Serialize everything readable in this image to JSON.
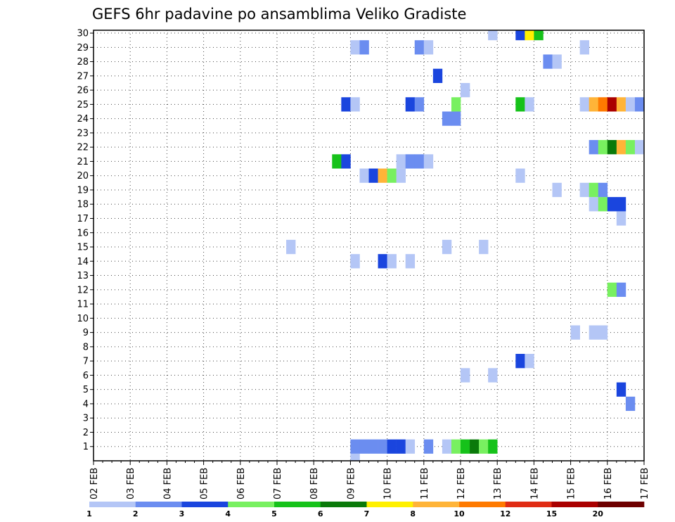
{
  "chart_data": {
    "type": "heatmap",
    "title": "GEFS 6hr padavine po ansamblima Veliko Gradiste",
    "xlabel": "",
    "ylabel": "",
    "x_ticks": [
      "02 FEB",
      "03 FEB",
      "04 FEB",
      "05 FEB",
      "06 FEB",
      "07 FEB",
      "08 FEB",
      "09 FEB",
      "10 FEB",
      "11 FEB",
      "12 FEB",
      "13 FEB",
      "14 FEB",
      "15 FEB",
      "16 FEB",
      "17 FEB"
    ],
    "y_ticks": [
      "1",
      "2",
      "3",
      "4",
      "5",
      "6",
      "7",
      "8",
      "9",
      "10",
      "11",
      "12",
      "13",
      "14",
      "15",
      "16",
      "17",
      "18",
      "19",
      "20",
      "21",
      "22",
      "23",
      "24",
      "25",
      "26",
      "27",
      "28",
      "29",
      "30"
    ],
    "xlim": [
      0,
      60
    ],
    "ylim": [
      0,
      30
    ],
    "grid": true,
    "color_scale": {
      "labels": [
        "1",
        "2",
        "3",
        "4",
        "5",
        "6",
        "7",
        "8",
        "10",
        "12",
        "15",
        "20"
      ],
      "colors": [
        "#b4c6f6",
        "#6b8df0",
        "#1a45de",
        "#78f060",
        "#16c21a",
        "#0a7a0a",
        "#fff000",
        "#ffb438",
        "#ff7a00",
        "#e02c14",
        "#aa0000",
        "#6e0000"
      ]
    },
    "cells": [
      [
        0,
        28,
        0
      ],
      [
        1,
        28,
        1
      ],
      [
        1,
        29,
        1
      ],
      [
        1,
        30,
        1
      ],
      [
        1,
        31,
        1
      ],
      [
        1,
        32,
        2
      ],
      [
        1,
        33,
        2
      ],
      [
        1,
        34,
        0
      ],
      [
        1,
        36,
        1
      ],
      [
        1,
        38,
        0
      ],
      [
        1,
        39,
        3
      ],
      [
        1,
        40,
        4
      ],
      [
        1,
        41,
        5
      ],
      [
        1,
        42,
        3
      ],
      [
        1,
        43,
        4
      ],
      [
        4,
        58,
        1
      ],
      [
        5,
        57,
        2
      ],
      [
        6,
        40,
        0
      ],
      [
        6,
        43,
        0
      ],
      [
        7,
        46,
        2
      ],
      [
        7,
        47,
        0
      ],
      [
        9,
        52,
        0
      ],
      [
        9,
        54,
        0
      ],
      [
        9,
        55,
        0
      ],
      [
        12,
        56,
        3
      ],
      [
        12,
        57,
        1
      ],
      [
        14,
        28,
        0
      ],
      [
        14,
        31,
        2
      ],
      [
        14,
        32,
        0
      ],
      [
        14,
        34,
        0
      ],
      [
        15,
        21,
        0
      ],
      [
        15,
        38,
        0
      ],
      [
        15,
        42,
        0
      ],
      [
        17,
        57,
        0
      ],
      [
        18,
        54,
        0
      ],
      [
        18,
        55,
        3
      ],
      [
        18,
        56,
        2
      ],
      [
        18,
        57,
        2
      ],
      [
        19,
        50,
        0
      ],
      [
        19,
        53,
        0
      ],
      [
        19,
        54,
        3
      ],
      [
        19,
        55,
        1
      ],
      [
        20,
        29,
        0
      ],
      [
        20,
        30,
        2
      ],
      [
        20,
        31,
        7
      ],
      [
        20,
        32,
        3
      ],
      [
        20,
        33,
        0
      ],
      [
        20,
        46,
        0
      ],
      [
        21,
        26,
        4
      ],
      [
        21,
        27,
        2
      ],
      [
        21,
        33,
        0
      ],
      [
        21,
        34,
        1
      ],
      [
        21,
        35,
        1
      ],
      [
        21,
        36,
        0
      ],
      [
        22,
        54,
        1
      ],
      [
        22,
        55,
        3
      ],
      [
        22,
        56,
        5
      ],
      [
        22,
        57,
        7
      ],
      [
        22,
        58,
        3
      ],
      [
        22,
        59,
        0
      ],
      [
        24,
        38,
        1
      ],
      [
        24,
        39,
        1
      ],
      [
        25,
        27,
        2
      ],
      [
        25,
        28,
        0
      ],
      [
        25,
        34,
        2
      ],
      [
        25,
        35,
        1
      ],
      [
        25,
        39,
        3
      ],
      [
        25,
        46,
        4
      ],
      [
        25,
        47,
        0
      ],
      [
        25,
        53,
        0
      ],
      [
        25,
        54,
        7
      ],
      [
        25,
        55,
        8
      ],
      [
        25,
        56,
        10
      ],
      [
        25,
        57,
        7
      ],
      [
        25,
        58,
        0
      ],
      [
        25,
        59,
        1
      ],
      [
        26,
        40,
        0
      ],
      [
        27,
        37,
        2
      ],
      [
        28,
        49,
        1
      ],
      [
        28,
        50,
        0
      ],
      [
        29,
        28,
        0
      ],
      [
        29,
        29,
        1
      ],
      [
        29,
        35,
        1
      ],
      [
        29,
        36,
        0
      ],
      [
        29,
        53,
        0
      ],
      [
        30,
        43,
        0
      ],
      [
        30,
        46,
        2
      ],
      [
        30,
        47,
        6
      ],
      [
        30,
        48,
        4
      ]
    ]
  }
}
